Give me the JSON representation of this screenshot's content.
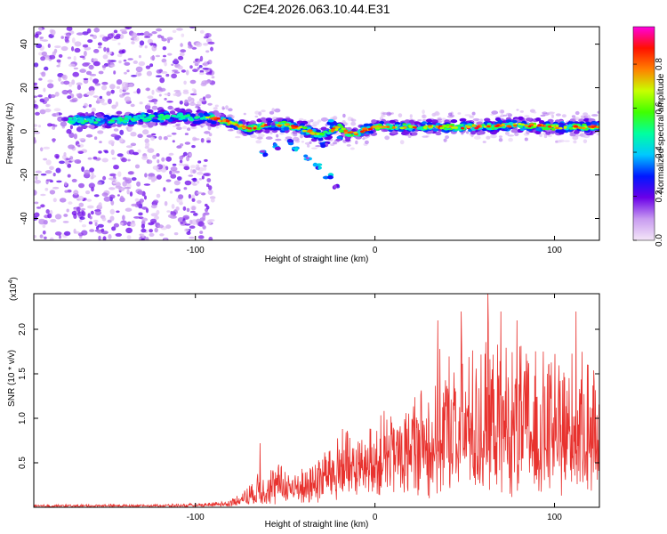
{
  "title": "C2E4.2026.063.10.44.E31",
  "chart_data": [
    {
      "type": "heatmap",
      "name": "spectrogram",
      "xlabel": "Height of straight line (km)",
      "ylabel": "Frequency (Hz)",
      "xlim": [
        -190,
        125
      ],
      "ylim": [
        -50,
        48
      ],
      "x_ticks": [
        -100,
        0,
        100
      ],
      "y_ticks": [
        -40,
        -20,
        0,
        20,
        40
      ],
      "colorbar": {
        "label": "Normalized spectral amplitude",
        "range": [
          0,
          0.97
        ],
        "ticks": [
          "0.0",
          "0.2",
          "0.4",
          "0.6",
          "0.8"
        ],
        "tick_values": [
          0.0,
          0.2,
          0.4,
          0.6,
          0.8
        ],
        "stops": [
          {
            "v": 0.0,
            "color": "#f4e6f8"
          },
          {
            "v": 0.1,
            "color": "#c89bf0"
          },
          {
            "v": 0.2,
            "color": "#6a00e8"
          },
          {
            "v": 0.3,
            "color": "#0018ff"
          },
          {
            "v": 0.4,
            "color": "#00c8ff"
          },
          {
            "v": 0.5,
            "color": "#00ffa0"
          },
          {
            "v": 0.6,
            "color": "#40ff00"
          },
          {
            "v": 0.7,
            "color": "#c8ff00"
          },
          {
            "v": 0.8,
            "color": "#ff8000"
          },
          {
            "v": 0.9,
            "color": "#ff1000"
          },
          {
            "v": 1.0,
            "color": "#ff00e0"
          }
        ]
      },
      "ridge": [
        {
          "x": -170,
          "f": 5
        },
        {
          "x": -150,
          "f": 5
        },
        {
          "x": -130,
          "f": 6
        },
        {
          "x": -110,
          "f": 7
        },
        {
          "x": -100,
          "f": 6
        },
        {
          "x": -90,
          "f": 6
        },
        {
          "x": -80,
          "f": 4
        },
        {
          "x": -70,
          "f": 1
        },
        {
          "x": -60,
          "f": 3
        },
        {
          "x": -50,
          "f": 3
        },
        {
          "x": -40,
          "f": 1
        },
        {
          "x": -30,
          "f": -2
        },
        {
          "x": -20,
          "f": 2
        },
        {
          "x": -15,
          "f": -1
        },
        {
          "x": -10,
          "f": -1
        },
        {
          "x": -5,
          "f": 1
        },
        {
          "x": 0,
          "f": 2
        },
        {
          "x": 20,
          "f": 2
        },
        {
          "x": 40,
          "f": 2
        },
        {
          "x": 60,
          "f": 2
        },
        {
          "x": 80,
          "f": 3
        },
        {
          "x": 100,
          "f": 2
        },
        {
          "x": 125,
          "f": 2
        }
      ]
    },
    {
      "type": "line",
      "name": "snr",
      "xlabel": "Height of straight line (km)",
      "ylabel": "SNR (10 * v/v)",
      "exponent_label": "(x10",
      "exponent_power": "4",
      "exponent_close": ")",
      "xlim": [
        -190,
        125
      ],
      "ylim": [
        0,
        2.4
      ],
      "x_ticks": [
        -100,
        0,
        100
      ],
      "y_ticks": [
        0.5,
        1.0,
        1.5,
        2.0
      ],
      "y_tick_labels": [
        "0.5",
        "1.0",
        "1.5",
        "2.0"
      ],
      "color": "#e8322e",
      "envelope": [
        {
          "x": -190,
          "base": 0.01,
          "amp": 0.02
        },
        {
          "x": -100,
          "base": 0.015,
          "amp": 0.025
        },
        {
          "x": -80,
          "base": 0.03,
          "amp": 0.06
        },
        {
          "x": -70,
          "base": 0.08,
          "amp": 0.2
        },
        {
          "x": -60,
          "base": 0.12,
          "amp": 0.4
        },
        {
          "x": -40,
          "base": 0.15,
          "amp": 0.3
        },
        {
          "x": -30,
          "base": 0.2,
          "amp": 0.5
        },
        {
          "x": -20,
          "base": 0.25,
          "amp": 0.7
        },
        {
          "x": -10,
          "base": 0.3,
          "amp": 0.5
        },
        {
          "x": 0,
          "base": 0.4,
          "amp": 0.6
        },
        {
          "x": 20,
          "base": 0.45,
          "amp": 0.9
        },
        {
          "x": 40,
          "base": 0.5,
          "amp": 1.3
        },
        {
          "x": 60,
          "base": 0.5,
          "amp": 1.5
        },
        {
          "x": 80,
          "base": 0.5,
          "amp": 1.4
        },
        {
          "x": 100,
          "base": 0.5,
          "amp": 1.3
        },
        {
          "x": 125,
          "base": 0.5,
          "amp": 1.3
        }
      ],
      "peaks": [
        {
          "x": -64,
          "y": 0.72
        },
        {
          "x": -18,
          "y": 0.88
        },
        {
          "x": -14,
          "y": 0.78
        },
        {
          "x": 35,
          "y": 2.1
        },
        {
          "x": 48,
          "y": 2.2
        },
        {
          "x": 63,
          "y": 2.4
        },
        {
          "x": 70,
          "y": 2.2
        },
        {
          "x": 79,
          "y": 2.1
        },
        {
          "x": 112,
          "y": 2.2
        }
      ]
    }
  ]
}
